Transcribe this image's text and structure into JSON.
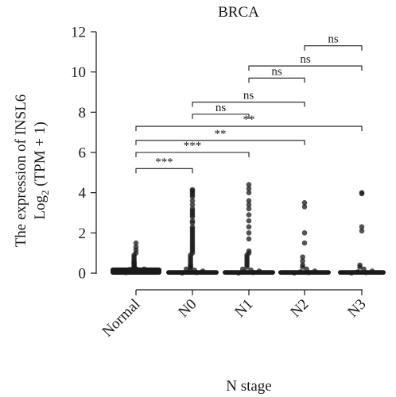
{
  "chart_data": {
    "type": "scatter",
    "title": "BRCA",
    "xlabel": "N stage",
    "ylabel_line1": "The expression of INSL6",
    "ylabel_line2_pre": "Log",
    "ylabel_line2_sub": "2",
    "ylabel_line2_post": " (TPM + 1)",
    "ylim": [
      0,
      12
    ],
    "yticks": [
      0,
      2,
      4,
      6,
      8,
      10,
      12
    ],
    "categories": [
      "Normal",
      "N0",
      "N1",
      "N2",
      "N3"
    ],
    "points": [
      [
        0.03,
        0.06,
        0.1,
        0.12,
        0.15,
        0.18,
        0.2,
        0.22,
        0.25,
        0.28,
        0.3,
        0.35,
        0.4,
        0.45,
        0.5,
        0.55,
        0.6,
        0.7,
        0.8,
        0.9,
        1.0,
        1.15,
        1.3,
        1.5
      ],
      [
        0.01,
        0.03,
        0.06,
        0.1,
        0.15,
        0.2,
        0.25,
        0.3,
        0.35,
        0.4,
        0.5,
        0.6,
        0.7,
        0.8,
        0.9,
        1.0,
        1.1,
        1.2,
        1.3,
        1.4,
        1.5,
        1.6,
        1.7,
        1.8,
        1.9,
        2.0,
        2.1,
        2.2,
        2.3,
        2.5,
        2.6,
        2.8,
        2.9,
        3.0,
        3.1,
        3.2,
        3.4,
        3.6,
        3.8,
        3.9,
        4.0,
        4.1,
        4.15
      ],
      [
        0.01,
        0.03,
        0.06,
        0.1,
        0.15,
        0.2,
        0.3,
        0.4,
        0.5,
        0.6,
        0.7,
        0.8,
        0.9,
        1.0,
        1.1,
        1.7,
        2.0,
        2.3,
        2.6,
        2.9,
        3.2,
        3.4,
        3.6,
        4.0,
        4.2,
        4.4
      ],
      [
        0.01,
        0.03,
        0.06,
        0.1,
        0.2,
        0.3,
        0.4,
        0.6,
        0.8,
        1.5,
        2.0,
        3.3,
        3.5
      ],
      [
        0.01,
        0.03,
        0.06,
        0.1,
        0.2,
        0.3,
        0.4,
        2.1,
        2.3,
        3.95,
        4.0
      ]
    ],
    "comparisons": [
      {
        "from": 0,
        "to": 1,
        "y": 5.2,
        "label": "***"
      },
      {
        "from": 0,
        "to": 2,
        "y": 6.0,
        "label": "***"
      },
      {
        "from": 0,
        "to": 3,
        "y": 6.6,
        "label": "**"
      },
      {
        "from": 0,
        "to": 4,
        "y": 7.3,
        "label": "**"
      },
      {
        "from": 1,
        "to": 2,
        "y": 7.9,
        "label": "ns"
      },
      {
        "from": 1,
        "to": 3,
        "y": 8.5,
        "label": "ns"
      },
      {
        "from": 2,
        "to": 3,
        "y": 9.7,
        "label": "ns"
      },
      {
        "from": 2,
        "to": 4,
        "y": 10.3,
        "label": "ns"
      },
      {
        "from": 3,
        "to": 4,
        "y": 11.3,
        "label": "ns"
      }
    ],
    "point_color": "#1a1a1a",
    "grid": false
  }
}
